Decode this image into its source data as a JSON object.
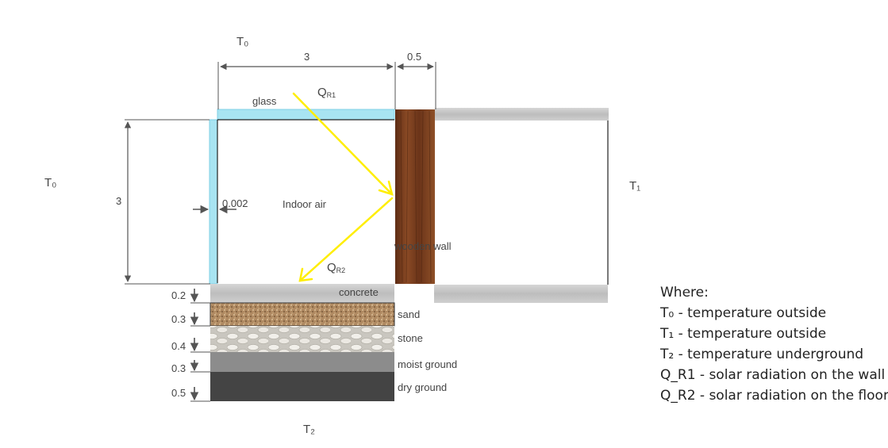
{
  "labels": {
    "t0_top": "T₀",
    "t0_left": "T₀",
    "t1": "T₁",
    "t2": "T₂",
    "dim_width": "3",
    "dim_wall": "0.5",
    "dim_height": "3",
    "dim_glass": "0.002",
    "glass": "glass",
    "indoor_air": "Indoor air",
    "qr1": "Q",
    "qr1_sub": "R1",
    "qr2": "Q",
    "qr2_sub": "R2",
    "wooden_wall": "wooden wall",
    "concrete": "concrete"
  },
  "layers": [
    {
      "thickness": "0.2",
      "name": "concrete",
      "color": "#c9c9c9"
    },
    {
      "thickness": "0.3",
      "name": "sand",
      "color": "#b08a62"
    },
    {
      "thickness": "0.4",
      "name": "stone",
      "color": "#d8d5cf"
    },
    {
      "thickness": "0.3",
      "name": "moist ground",
      "color": "#8c8c8c"
    },
    {
      "thickness": "0.5",
      "name": "dry ground",
      "color": "#444444"
    }
  ],
  "legend": {
    "title": "Where:",
    "items": [
      "T₀ - temperature outside",
      "T₁ - temperature outside",
      "T₂ - temperature underground",
      "Q_R1 - solar radiation on the wall",
      "Q_R2 - solar radiation on the floor"
    ]
  },
  "colors": {
    "glass": "#a8e4f2",
    "wood": "#7a3e1f",
    "ray": "#ffee00",
    "concrete": "#c8c8c8"
  }
}
